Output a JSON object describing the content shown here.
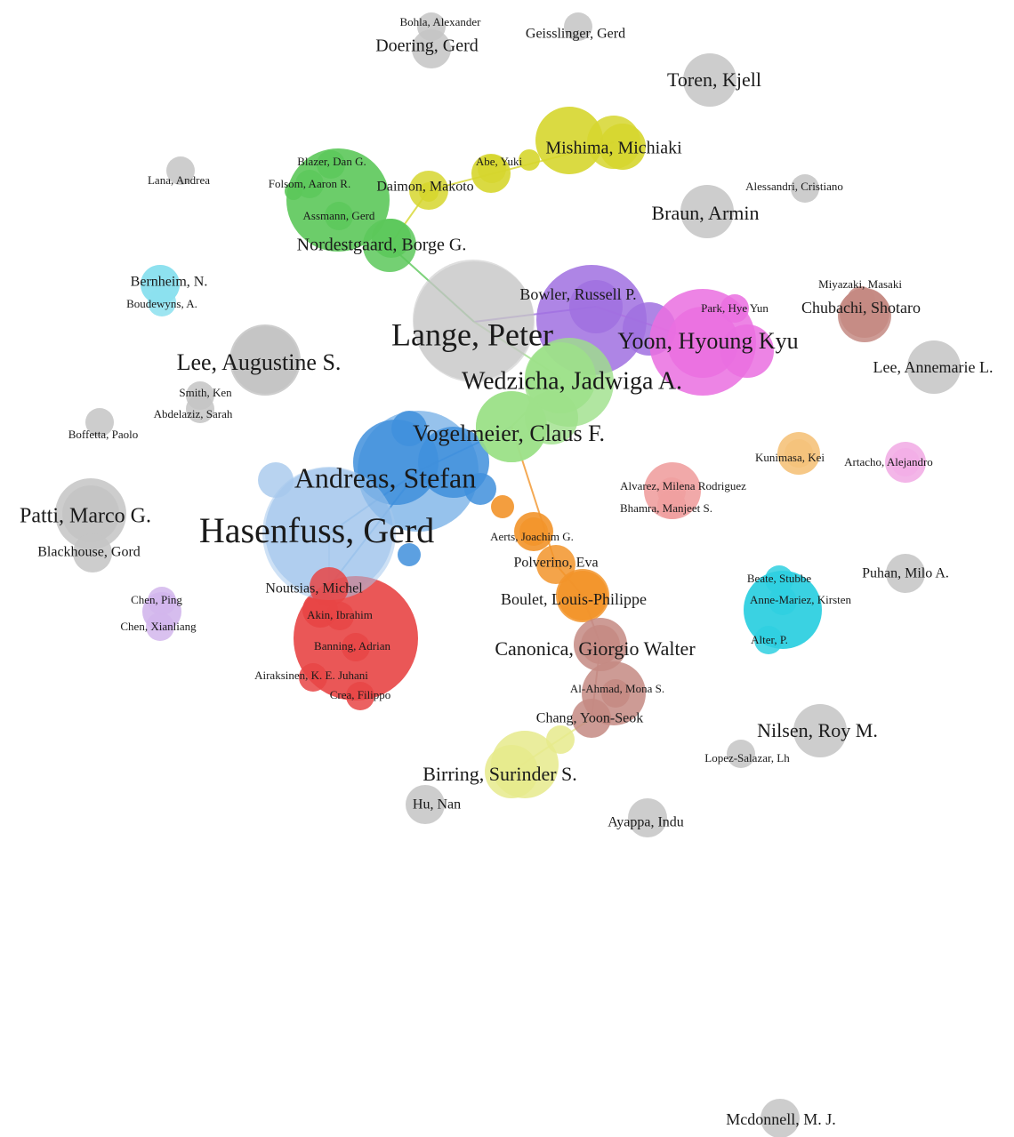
{
  "colors": {
    "gray": "#c4c4c4",
    "green": "#5cc85a",
    "yellow": "#d6d62e",
    "purple": "#a070e0",
    "pink": "#ea6fe0",
    "lightgreen": "#9ee08a",
    "blue": "#3f8fdc",
    "lightblue": "#a6c8ec",
    "red": "#e84545",
    "orange": "#f2942a",
    "brown": "#c48a82",
    "cyan": "#2fd0e0",
    "cyan2": "#8ce0ee",
    "salmon": "#f0a0a0",
    "lightorange": "#f5c27a",
    "lightpink": "#f2aee6",
    "lavender": "#d2b6ec",
    "lightyellow": "#e6ea8c"
  },
  "nodes": [
    {
      "label": "Bohla, Alexander",
      "weight": 1,
      "color": "gray"
    },
    {
      "label": "Doering, Gerd",
      "weight": 2,
      "color": "gray"
    },
    {
      "label": "Geisslinger, Gerd",
      "weight": 1,
      "color": "gray"
    },
    {
      "label": "Toren, Kjell",
      "weight": 3,
      "color": "gray"
    },
    {
      "label": "Mishima, Michiaki",
      "weight": 3,
      "color": "yellow"
    },
    {
      "label": "Abe, Yuki",
      "weight": 1,
      "color": "yellow"
    },
    {
      "label": "Daimon, Makoto",
      "weight": 2,
      "color": "yellow"
    },
    {
      "label": "Blazer, Dan G.",
      "weight": 1,
      "color": "green"
    },
    {
      "label": "Folsom, Aaron R.",
      "weight": 1,
      "color": "green"
    },
    {
      "label": "Assmann, Gerd",
      "weight": 1,
      "color": "green"
    },
    {
      "label": "Nordestgaard, Borge G.",
      "weight": 3,
      "color": "green"
    },
    {
      "label": "Lana, Andrea",
      "weight": 1,
      "color": "gray"
    },
    {
      "label": "Alessandri, Cristiano",
      "weight": 1,
      "color": "gray"
    },
    {
      "label": "Braun, Armin",
      "weight": 3,
      "color": "gray"
    },
    {
      "label": "Bernheim, N.",
      "weight": 2,
      "color": "cyan2"
    },
    {
      "label": "Boudewyns, A.",
      "weight": 1,
      "color": "cyan2"
    },
    {
      "label": "Bowler, Russell P.",
      "weight": 3,
      "color": "purple"
    },
    {
      "label": "Miyazaki, Masaki",
      "weight": 1,
      "color": "brown"
    },
    {
      "label": "Park, Hye Yun",
      "weight": 1,
      "color": "pink"
    },
    {
      "label": "Chubachi, Shotaro",
      "weight": 3,
      "color": "brown"
    },
    {
      "label": "Lange, Peter",
      "weight": 5,
      "color": "gray"
    },
    {
      "label": "Yoon, Hyoung Kyu",
      "weight": 4,
      "color": "pink"
    },
    {
      "label": "Lee, Augustine S.",
      "weight": 4,
      "color": "gray"
    },
    {
      "label": "Wedzicha, Jadwiga A.",
      "weight": 4,
      "color": "lightgreen"
    },
    {
      "label": "Lee, Annemarie L.",
      "weight": 3,
      "color": "gray"
    },
    {
      "label": "Smith, Ken",
      "weight": 1,
      "color": "gray"
    },
    {
      "label": "Abdelaziz, Sarah",
      "weight": 1,
      "color": "gray"
    },
    {
      "label": "Boffetta, Paolo",
      "weight": 1,
      "color": "gray"
    },
    {
      "label": "Vogelmeier, Claus F.",
      "weight": 4,
      "color": "lightgreen"
    },
    {
      "label": "Kunimasa, Kei",
      "weight": 1,
      "color": "lightorange"
    },
    {
      "label": "Artacho, Alejandro",
      "weight": 1,
      "color": "lightpink"
    },
    {
      "label": "Andreas, Stefan",
      "weight": 5,
      "color": "blue"
    },
    {
      "label": "Alvarez, Milena Rodriguez",
      "weight": 1,
      "color": "salmon"
    },
    {
      "label": "Bhamra, Manjeet S.",
      "weight": 1,
      "color": "salmon"
    },
    {
      "label": "Patti, Marco G.",
      "weight": 4,
      "color": "gray"
    },
    {
      "label": "Hasenfuss, Gerd",
      "weight": 6,
      "color": "lightblue"
    },
    {
      "label": "Blackhouse, Gord",
      "weight": 2,
      "color": "gray"
    },
    {
      "label": "Aerts, Joachim G.",
      "weight": 1,
      "color": "orange"
    },
    {
      "label": "Polverino, Eva",
      "weight": 2,
      "color": "orange"
    },
    {
      "label": "Puhan, Milo A.",
      "weight": 2,
      "color": "gray"
    },
    {
      "label": "Beate, Stubbe",
      "weight": 1,
      "color": "cyan"
    },
    {
      "label": "Noutsias, Michel",
      "weight": 2,
      "color": "red"
    },
    {
      "label": "Chen, Ping",
      "weight": 1,
      "color": "lavender"
    },
    {
      "label": "Anne-Mariez, Kirsten",
      "weight": 1,
      "color": "cyan"
    },
    {
      "label": "Boulet, Louis-Philippe",
      "weight": 3,
      "color": "orange"
    },
    {
      "label": "Akin, Ibrahim",
      "weight": 1,
      "color": "red"
    },
    {
      "label": "Chen, Xianliang",
      "weight": 1,
      "color": "lavender"
    },
    {
      "label": "Alter, P.",
      "weight": 1,
      "color": "cyan"
    },
    {
      "label": "Banning, Adrian",
      "weight": 1,
      "color": "red"
    },
    {
      "label": "Canonica, Giorgio Walter",
      "weight": 3,
      "color": "brown"
    },
    {
      "label": "Airaksinen, K. E. Juhani",
      "weight": 1,
      "color": "red"
    },
    {
      "label": "Al-Ahmad, Mona S.",
      "weight": 1,
      "color": "brown"
    },
    {
      "label": "Crea, Filippo",
      "weight": 1,
      "color": "red"
    },
    {
      "label": "Chang, Yoon-Seok",
      "weight": 2,
      "color": "brown"
    },
    {
      "label": "Nilsen, Roy M.",
      "weight": 3,
      "color": "gray"
    },
    {
      "label": "Lopez-Salazar, Lh",
      "weight": 1,
      "color": "gray"
    },
    {
      "label": "Birring, Surinder S.",
      "weight": 3,
      "color": "lightyellow"
    },
    {
      "label": "Hu, Nan",
      "weight": 2,
      "color": "gray"
    },
    {
      "label": "Ayappa, Indu",
      "weight": 2,
      "color": "gray"
    },
    {
      "label": "Mcdonnell, M. J.",
      "weight": 2,
      "color": "gray"
    }
  ],
  "edges": [
    {
      "source": "Nordestgaard, Borge G.",
      "target": "Lange, Peter",
      "color": "green"
    },
    {
      "source": "Daimon, Makoto",
      "target": "Mishima, Michiaki",
      "color": "yellow"
    },
    {
      "source": "Nordestgaard, Borge G.",
      "target": "Daimon, Makoto",
      "color": "yellow"
    },
    {
      "source": "Vogelmeier, Claus F.",
      "target": "Wedzicha, Jadwiga A.",
      "color": "lightgreen"
    },
    {
      "source": "Andreas, Stefan",
      "target": "Hasenfuss, Gerd",
      "color": "blue"
    },
    {
      "source": "Andreas, Stefan",
      "target": "Vogelmeier, Claus F.",
      "color": "blue"
    },
    {
      "source": "Hasenfuss, Gerd",
      "target": "Noutsias, Michel",
      "color": "lightblue"
    },
    {
      "source": "Andreas, Stefan",
      "target": "Noutsias, Michel",
      "color": "blue"
    },
    {
      "source": "Vogelmeier, Claus F.",
      "target": "Polverino, Eva",
      "color": "orange"
    },
    {
      "source": "Polverino, Eva",
      "target": "Boulet, Louis-Philippe",
      "color": "orange"
    },
    {
      "source": "Boulet, Louis-Philippe",
      "target": "Canonica, Giorgio Walter",
      "color": "brown"
    },
    {
      "source": "Canonica, Giorgio Walter",
      "target": "Chang, Yoon-Seok",
      "color": "brown"
    },
    {
      "source": "Chang, Yoon-Seok",
      "target": "Birring, Surinder S.",
      "color": "lightyellow"
    },
    {
      "source": "Lange, Peter",
      "target": "Bowler, Russell P.",
      "color": "purple"
    },
    {
      "source": "Bowler, Russell P.",
      "target": "Yoon, Hyoung Kyu",
      "color": "pink"
    },
    {
      "source": "Lange, Peter",
      "target": "Wedzicha, Jadwiga A.",
      "color": "lightgreen"
    }
  ]
}
